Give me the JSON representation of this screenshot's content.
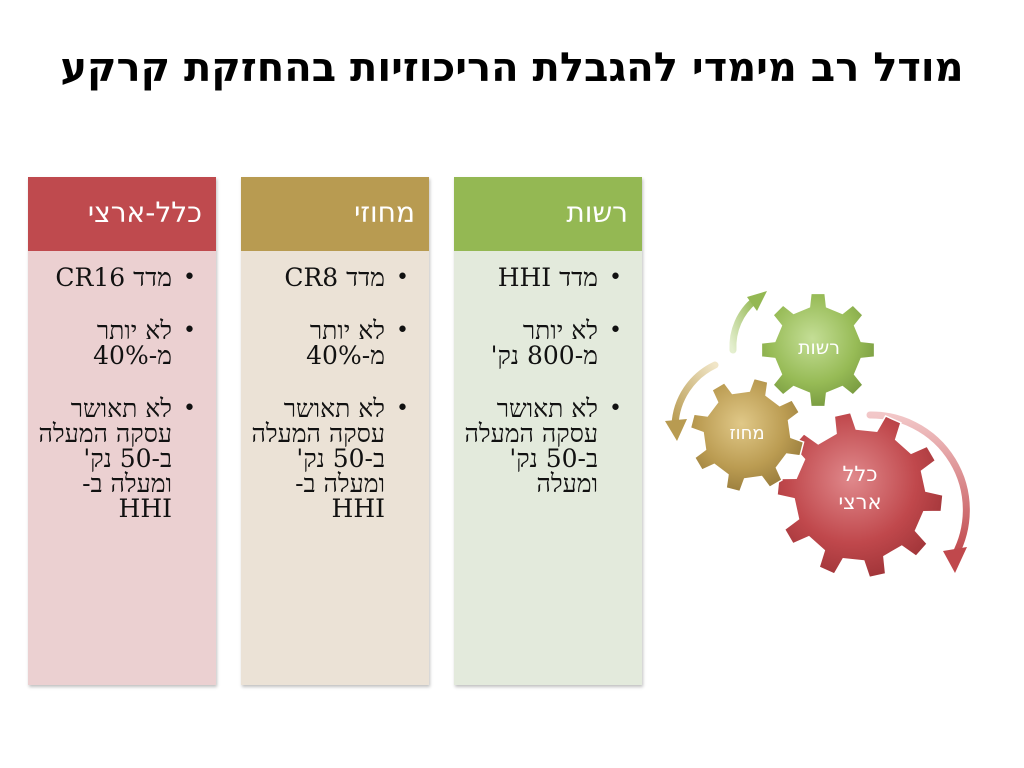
{
  "title": "מודל רב מימדי להגבלת הריכוזיות בהחזקת קרקע",
  "columns": {
    "national": {
      "header": "כלל-ארצי",
      "items": [
        "מדד CR16",
        "לא יותר מ-40%",
        "לא תאושר עסקה המעלה ב-50 נק' ומעלה ב-HHI"
      ]
    },
    "district": {
      "header": "מחוזי",
      "items": [
        "מדד CR8",
        "לא יותר מ-40%",
        "לא תאושר עסקה המעלה ב-50 נק' ומעלה ב-HHI"
      ]
    },
    "local": {
      "header": "רשות",
      "items": [
        "מדד HHI",
        "לא יותר מ-800 נק'",
        "לא תאושר עסקה המעלה ב-50 נק' ומעלה"
      ]
    }
  },
  "gears": {
    "local_label": "רשות",
    "district_label": "מחוז",
    "national_label_line1": "כלל",
    "national_label_line2": "ארצי"
  },
  "colors": {
    "national": "#bf4a4e",
    "district": "#b89b51",
    "local": "#94b853"
  }
}
